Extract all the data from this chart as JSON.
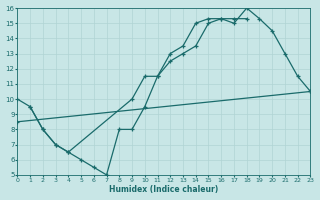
{
  "bg_color": "#c8e6e6",
  "grid_color": "#b0d4d4",
  "line_color": "#1a6b6b",
  "xlabel": "Humidex (Indice chaleur)",
  "xlim": [
    0,
    23
  ],
  "ylim": [
    5,
    16
  ],
  "xticks": [
    0,
    1,
    2,
    3,
    4,
    5,
    6,
    7,
    8,
    9,
    10,
    11,
    12,
    13,
    14,
    15,
    16,
    17,
    18,
    19,
    20,
    21,
    22,
    23
  ],
  "yticks": [
    5,
    6,
    7,
    8,
    9,
    10,
    11,
    12,
    13,
    14,
    15,
    16
  ],
  "line1_x": [
    0,
    1,
    2,
    3,
    4,
    9,
    10,
    11,
    12,
    13,
    14,
    15,
    16,
    17,
    18,
    19,
    20,
    21,
    22,
    23
  ],
  "line1_y": [
    10,
    9.5,
    8.0,
    7.0,
    6.5,
    10.0,
    11.5,
    11.5,
    13.0,
    13.5,
    15.0,
    15.3,
    15.3,
    15.0,
    16.0,
    15.3,
    14.5,
    13.0,
    11.5,
    10.5
  ],
  "line2_x": [
    1,
    2,
    3,
    4,
    5,
    6,
    7,
    8,
    9,
    10,
    11,
    12,
    13,
    14,
    15,
    16,
    17,
    18
  ],
  "line2_y": [
    9.5,
    8.0,
    7.0,
    6.5,
    6.0,
    5.5,
    5.0,
    8.0,
    8.0,
    9.5,
    11.5,
    12.5,
    13.0,
    13.5,
    15.0,
    15.3,
    15.3,
    15.3
  ],
  "line3_x": [
    0,
    23
  ],
  "line3_y": [
    8.5,
    10.5
  ],
  "lw": 0.9,
  "ms": 2.5
}
